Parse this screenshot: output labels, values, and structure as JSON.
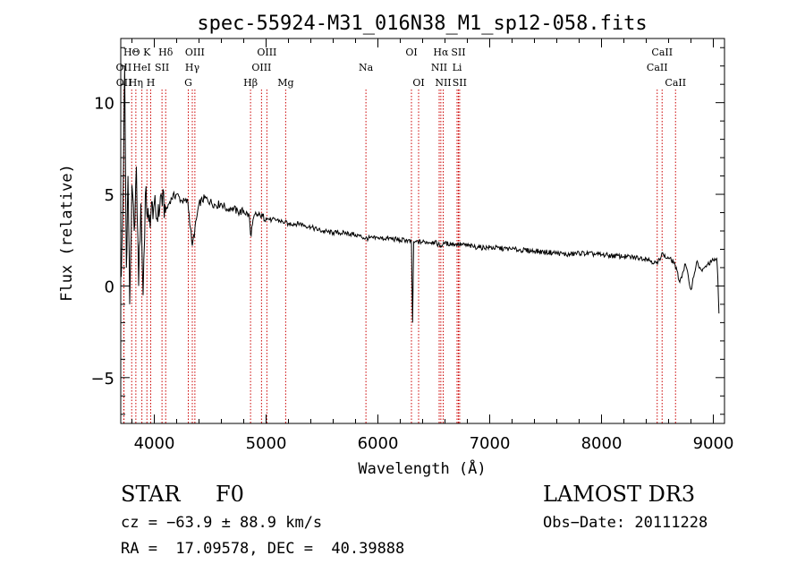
{
  "chart_data": {
    "type": "line",
    "title": "spec-55924-M31_016N38_M1_sp12-058.fits",
    "xlabel": "Wavelength (Å)",
    "ylabel": "Flux (relative)",
    "xlim": [
      3700,
      9100
    ],
    "ylim": [
      -7.5,
      13.5
    ],
    "xticks": [
      {
        "value": 4000,
        "label": "4000"
      },
      {
        "value": 5000,
        "label": "5000"
      },
      {
        "value": 6000,
        "label": "6000"
      },
      {
        "value": 7000,
        "label": "7000"
      },
      {
        "value": 8000,
        "label": "8000"
      },
      {
        "value": 9000,
        "label": "9000"
      }
    ],
    "yticks": [
      {
        "value": -5,
        "label": "−5"
      },
      {
        "value": 0,
        "label": "0"
      },
      {
        "value": 5,
        "label": "5"
      },
      {
        "value": 10,
        "label": "10"
      }
    ],
    "xminor_step": 200,
    "yminor_step": 1,
    "series": [
      {
        "name": "spectrum",
        "x": [
          3705,
          3720,
          3735,
          3750,
          3765,
          3780,
          3800,
          3820,
          3840,
          3860,
          3880,
          3900,
          3920,
          3950,
          3970,
          4000,
          4030,
          4060,
          4100,
          4150,
          4200,
          4250,
          4300,
          4340,
          4400,
          4450,
          4500,
          4550,
          4600,
          4650,
          4700,
          4750,
          4800,
          4850,
          4861,
          4900,
          4950,
          5000,
          5050,
          5100,
          5150,
          5200,
          5300,
          5400,
          5500,
          5600,
          5700,
          5800,
          5890,
          6000,
          6100,
          6200,
          6250,
          6300,
          6310,
          6320,
          6330,
          6400,
          6500,
          6563,
          6600,
          6700,
          6800,
          6900,
          7000,
          7200,
          7400,
          7600,
          7700,
          7800,
          8000,
          8200,
          8400,
          8500,
          8540,
          8560,
          8600,
          8650,
          8700,
          8750,
          8800,
          8850,
          8900,
          8950,
          9000,
          9030,
          9040,
          9050
        ],
        "y": [
          0.5,
          4.5,
          12,
          1,
          6,
          -1,
          5.5,
          3,
          6.5,
          0,
          4.5,
          -0.5,
          5,
          3.5,
          4,
          4.5,
          3.5,
          5,
          4,
          4.8,
          5,
          4.6,
          4.6,
          2.2,
          4.5,
          4.8,
          4.6,
          4.4,
          4.5,
          4.2,
          4.3,
          4,
          4.1,
          3.8,
          2.8,
          3.9,
          3.8,
          3.7,
          3.6,
          3.6,
          3.5,
          3.4,
          3.4,
          3.2,
          3,
          2.9,
          2.9,
          2.8,
          2.6,
          2.6,
          2.6,
          2.5,
          2.5,
          2.4,
          -2,
          2.4,
          2.4,
          2.4,
          2.4,
          2.2,
          2.3,
          2.3,
          2.2,
          2.1,
          2.1,
          2,
          1.9,
          1.8,
          1.7,
          1.8,
          1.7,
          1.6,
          1.5,
          1.2,
          1.8,
          1.6,
          1.5,
          1.3,
          0.2,
          1.2,
          -0.2,
          1.3,
          0.8,
          1.2,
          1.4,
          1.5,
          0.5,
          -1.5
        ]
      }
    ],
    "lines": [
      {
        "label": "HΘ",
        "x": 3798,
        "row": 1
      },
      {
        "label": "OII",
        "x": 3727,
        "row": 2
      },
      {
        "label": "OII",
        "x": 3729,
        "row": 3
      },
      {
        "label": "HeI",
        "x": 3889,
        "row": 2
      },
      {
        "label": "Hη",
        "x": 3835,
        "row": 3
      },
      {
        "label": "K",
        "x": 3934,
        "row": 1
      },
      {
        "label": "SII",
        "x": 4069,
        "row": 2
      },
      {
        "label": "H",
        "x": 3968,
        "row": 3
      },
      {
        "label": "Hδ",
        "x": 4102,
        "row": 1
      },
      {
        "label": "OIII",
        "x": 4363,
        "row": 1
      },
      {
        "label": "Hγ",
        "x": 4340,
        "row": 2
      },
      {
        "label": "G",
        "x": 4304,
        "row": 3
      },
      {
        "label": "OIII",
        "x": 5007,
        "row": 1
      },
      {
        "label": "OIII",
        "x": 4959,
        "row": 2
      },
      {
        "label": "Hβ",
        "x": 4861,
        "row": 3
      },
      {
        "label": "Mg",
        "x": 5175,
        "row": 3
      },
      {
        "label": "Na",
        "x": 5893,
        "row": 2
      },
      {
        "label": "OI",
        "x": 6300,
        "row": 1
      },
      {
        "label": "OI",
        "x": 6364,
        "row": 3
      },
      {
        "label": "Hα",
        "x": 6563,
        "row": 1
      },
      {
        "label": "SII",
        "x": 6720,
        "row": 1
      },
      {
        "label": "NII",
        "x": 6548,
        "row": 2
      },
      {
        "label": "Li",
        "x": 6708,
        "row": 2
      },
      {
        "label": "NII",
        "x": 6584,
        "row": 3
      },
      {
        "label": "SII",
        "x": 6731,
        "row": 3
      },
      {
        "label": "CaII",
        "x": 8542,
        "row": 1
      },
      {
        "label": "CaII",
        "x": 8498,
        "row": 2
      },
      {
        "label": "CaII",
        "x": 8662,
        "row": 3
      }
    ]
  },
  "info": {
    "class": "STAR",
    "subclass": "F0",
    "survey": "LAMOST DR3",
    "cz": "cz = −63.9 ± 88.9 km/s",
    "obs_date": "Obs−Date: 20111228",
    "radec": "RA =  17.09578, DEC =  40.39888"
  },
  "colors": {
    "line_markers": "#cc0000",
    "spectrum": "#000000",
    "axes": "#000000"
  }
}
